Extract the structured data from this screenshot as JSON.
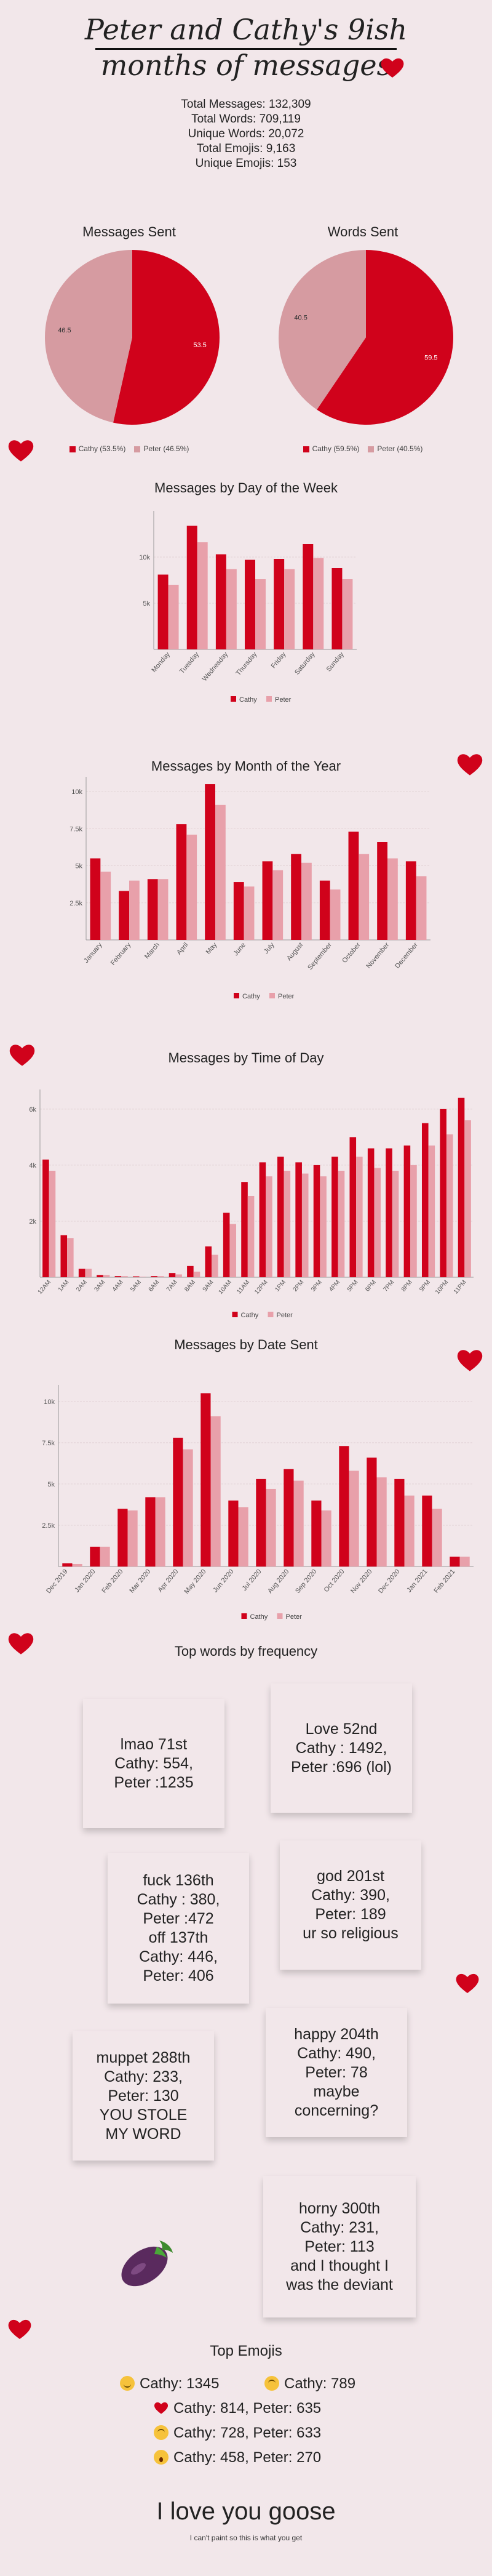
{
  "header": {
    "title_line1": "Peter and Cathy's 9ish",
    "title_line2": "months of messages"
  },
  "stats": [
    "Total Messages: 132,309",
    "Total Words: 709,119",
    "Unique Words: 20,072",
    "Total Emojis: 9,163",
    "Unique Emojis: 153"
  ],
  "colors": {
    "cathy": "#d0021b",
    "peter": "#e8a0aa",
    "pie_peter": "#d69ba1",
    "grid": "#e3d3d6",
    "heart": "#d0021b"
  },
  "chart_data": [
    {
      "type": "pie",
      "title": "Messages Sent",
      "labels": [
        "Cathy",
        "Peter"
      ],
      "values": [
        53.5,
        46.5
      ],
      "legend": [
        "Cathy (53.5%)",
        "Peter (46.5%)"
      ],
      "value_labels": [
        "53.5",
        "46.5"
      ]
    },
    {
      "type": "pie",
      "title": "Words Sent",
      "labels": [
        "Cathy",
        "Peter"
      ],
      "values": [
        59.5,
        40.5
      ],
      "legend": [
        "Cathy (59.5%)",
        "Peter (40.5%)"
      ],
      "value_labels": [
        "59.5",
        "40.5"
      ]
    },
    {
      "type": "bar",
      "title": "Messages by Day of the Week",
      "categories": [
        "Monday",
        "Tuesday",
        "Wednesday",
        "Thursday",
        "Friday",
        "Saturday",
        "Sunday"
      ],
      "series": [
        {
          "name": "Cathy",
          "values": [
            8100,
            13400,
            10300,
            9700,
            9800,
            11400,
            8800
          ]
        },
        {
          "name": "Peter",
          "values": [
            7000,
            11600,
            8700,
            7600,
            8700,
            9900,
            7600
          ]
        }
      ],
      "yticks": [
        5000,
        10000
      ],
      "ytick_labels": [
        "5k",
        "10k"
      ],
      "ylim": [
        0,
        15000
      ],
      "legend": [
        "Cathy",
        "Peter"
      ]
    },
    {
      "type": "bar",
      "title": "Messages by Month of the Year",
      "categories": [
        "January",
        "February",
        "March",
        "April",
        "May",
        "June",
        "July",
        "August",
        "September",
        "October",
        "November",
        "December"
      ],
      "series": [
        {
          "name": "Cathy",
          "values": [
            5500,
            3300,
            4100,
            7800,
            10500,
            3900,
            5300,
            5800,
            4000,
            7300,
            6600,
            5300
          ]
        },
        {
          "name": "Peter",
          "values": [
            4600,
            4000,
            4100,
            7100,
            9100,
            3600,
            4700,
            5200,
            3400,
            5800,
            5500,
            4300
          ]
        }
      ],
      "yticks": [
        2500,
        5000,
        7500,
        10000
      ],
      "ytick_labels": [
        "2.5k",
        "5k",
        "7.5k",
        "10k"
      ],
      "ylim": [
        0,
        11000
      ],
      "legend": [
        "Cathy",
        "Peter"
      ]
    },
    {
      "type": "bar",
      "title": "Messages by Time of Day",
      "categories": [
        "12AM",
        "1AM",
        "2AM",
        "3AM",
        "4AM",
        "5AM",
        "6AM",
        "7AM",
        "8AM",
        "9AM",
        "10AM",
        "11AM",
        "12PM",
        "1PM",
        "2PM",
        "3PM",
        "4PM",
        "5PM",
        "6PM",
        "7PM",
        "8PM",
        "9PM",
        "10PM",
        "11PM"
      ],
      "series": [
        {
          "name": "Cathy",
          "values": [
            4200,
            1500,
            300,
            80,
            40,
            30,
            40,
            150,
            400,
            1100,
            2300,
            3400,
            4100,
            4300,
            4100,
            4000,
            4300,
            5000,
            4600,
            4600,
            4700,
            5500,
            6000,
            6400
          ]
        },
        {
          "name": "Peter",
          "values": [
            3800,
            1400,
            300,
            80,
            40,
            20,
            40,
            100,
            200,
            800,
            1900,
            2900,
            3600,
            3800,
            3700,
            3600,
            3800,
            4300,
            3900,
            3800,
            4000,
            4700,
            5100,
            5600
          ]
        }
      ],
      "yticks": [
        2000,
        4000,
        6000
      ],
      "ytick_labels": [
        "2k",
        "4k",
        "6k"
      ],
      "ylim": [
        0,
        6700
      ],
      "legend": [
        "Cathy",
        "Peter"
      ]
    },
    {
      "type": "bar",
      "title": "Messages by Date Sent",
      "categories": [
        "Dec 2019",
        "Jan 2020",
        "Feb 2020",
        "Mar 2020",
        "Apr 2020",
        "May 2020",
        "Jun 2020",
        "Jul 2020",
        "Aug 2020",
        "Sep 2020",
        "Oct 2020",
        "Nov 2020",
        "Dec 2020",
        "Jan 2021",
        "Feb 2021"
      ],
      "x_tick_labels": [
        "Dec 2019",
        "",
        "Jan 2020",
        "",
        "Feb 2020",
        "",
        "Mar 2020",
        "",
        "Apr 2020",
        "",
        "May 2020",
        "",
        "Jun 2020",
        "",
        "Jul 2020",
        "",
        "Aug 2020",
        "",
        "Sep 2020",
        "",
        "Oct 2020",
        "",
        "Nov 2020",
        "",
        "Dec 2020",
        "",
        "Jan 2021",
        "",
        "Feb 2021",
        ""
      ],
      "series": [
        {
          "name": "Cathy",
          "values": [
            200,
            1200,
            3500,
            4200,
            7800,
            10500,
            4000,
            5300,
            5900,
            4000,
            7300,
            6600,
            5300,
            4300,
            600
          ]
        },
        {
          "name": "Peter",
          "values": [
            150,
            1200,
            3400,
            4200,
            7100,
            9100,
            3600,
            4700,
            5200,
            3400,
            5800,
            5400,
            4300,
            3500,
            600
          ]
        }
      ],
      "yticks": [
        2500,
        5000,
        7500,
        10000
      ],
      "ytick_labels": [
        "2.5k",
        "5k",
        "7.5k",
        "10k"
      ],
      "ylim": [
        0,
        11000
      ],
      "legend": [
        "Cathy",
        "Peter"
      ]
    }
  ],
  "words": {
    "title": "Top words by frequency",
    "notes": [
      {
        "text": "lmao 71st\nCathy:  554,\nPeter :1235",
        "color": "#fdf3ba"
      },
      {
        "text": "Love 52nd\nCathy : 1492,\nPeter :696 (lol)",
        "color": "#fbd0d3"
      },
      {
        "text": "fuck 136th\nCathy : 380,\nPeter :472\noff 137th\nCathy: 446,\nPeter: 406",
        "color": "#c7f2c3"
      },
      {
        "text": "god 201st\nCathy: 390,\nPeter: 189\nur so religious",
        "color": "#c7e6f5"
      },
      {
        "text": "muppet 288th\nCathy: 233,\nPeter: 130\nYOU STOLE\nMY WORD",
        "color": "#fbd0d3"
      },
      {
        "text": "happy 204th\nCathy: 490,\nPeter: 78\nmaybe\nconcerning?",
        "color": "#fbd9b8"
      },
      {
        "text": "horny 300th\nCathy: 231,\nPeter: 113\nand I thought I\nwas the deviant",
        "color": "#fdf3ba"
      }
    ]
  },
  "emojis": {
    "title": "Top Emojis",
    "rows": [
      {
        "icon": "smiling-face-icon",
        "text": "Cathy: 1345"
      },
      {
        "icon": "upside-down-face-icon",
        "text": "Cathy: 789"
      },
      {
        "icon": "red-heart-icon",
        "text": "Cathy: 814, Peter: 635"
      },
      {
        "icon": "upside-down-face-icon",
        "text": "Cathy: 728, Peter: 633"
      },
      {
        "icon": "astonished-face-icon",
        "text": "Cathy: 458, Peter: 270"
      }
    ]
  },
  "footer": {
    "closing": "I love you goose",
    "note": "I can't paint so this is what you get"
  }
}
